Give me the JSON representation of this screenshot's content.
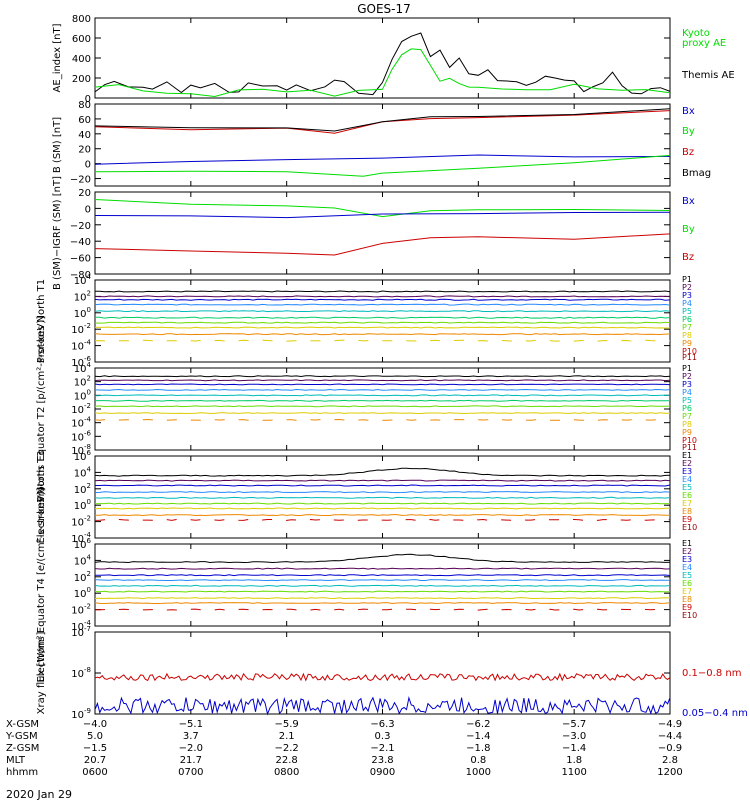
{
  "title": "GOES-17",
  "date": "2020 Jan 29",
  "colors": {
    "black": "#000000",
    "green": "#00dd00",
    "red": "#cc0000",
    "blue": "#0000cc",
    "darkred": "#990000",
    "yellow": "#ddcc00",
    "orange": "#ee8800",
    "cyan": "#00cccc",
    "lightblue": "#2288ff",
    "teal": "#00bbbb",
    "lime": "#66dd00",
    "purple": "#550055"
  },
  "chart_data": [
    {
      "type": "line",
      "ylabel": "AE_index [nT]",
      "ylim": [
        0,
        800
      ],
      "yticks": [
        "0",
        "200",
        "400",
        "600",
        "800"
      ],
      "legend": [
        {
          "text": "Kyoto",
          "color": "#00dd00"
        },
        {
          "text": "proxy AE",
          "color": "#00dd00"
        },
        {
          "text": "Themis AE",
          "color": "#000000"
        }
      ],
      "series": [
        {
          "name": "Themis AE",
          "color": "#000000",
          "x": [
            0,
            0.1,
            0.2,
            0.35,
            0.5,
            0.6,
            0.75,
            0.9,
            1.0,
            1.1,
            1.25,
            1.4,
            1.5,
            1.6,
            1.75,
            1.9,
            2.0,
            2.1,
            2.25,
            2.4,
            2.5,
            2.6,
            2.75,
            2.9,
            3.0,
            3.1,
            3.2,
            3.3,
            3.4,
            3.5,
            3.6,
            3.7,
            3.8,
            3.9,
            4.0,
            4.1,
            4.2,
            4.3,
            4.4,
            4.5,
            4.6,
            4.7,
            4.8,
            4.9,
            5.0,
            5.1,
            5.2,
            5.3,
            5.4,
            5.5,
            5.6,
            5.7,
            5.8,
            5.9,
            6.0
          ],
          "y": [
            60,
            140,
            120,
            80,
            100,
            90,
            110,
            100,
            140,
            90,
            120,
            90,
            80,
            100,
            120,
            90,
            100,
            90,
            80,
            110,
            140,
            110,
            100,
            90,
            110,
            380,
            620,
            580,
            640,
            420,
            500,
            280,
            360,
            300,
            220,
            250,
            180,
            150,
            120,
            160,
            140,
            200,
            150,
            230,
            140,
            110,
            110,
            120,
            270,
            110,
            80,
            60,
            50,
            70,
            60
          ]
        },
        {
          "name": "Kyoto proxy AE",
          "color": "#00dd00",
          "x": [
            0,
            0.25,
            0.5,
            0.75,
            1.0,
            1.25,
            1.5,
            1.75,
            2.0,
            2.25,
            2.5,
            2.75,
            3.0,
            3.1,
            3.2,
            3.3,
            3.4,
            3.5,
            3.6,
            3.7,
            3.8,
            3.9,
            4.0,
            4.25,
            4.5,
            4.75,
            5.0,
            5.25,
            5.5,
            5.75,
            6.0
          ],
          "y": [
            60,
            80,
            60,
            70,
            60,
            70,
            60,
            80,
            60,
            70,
            60,
            70,
            80,
            260,
            400,
            520,
            440,
            300,
            200,
            240,
            200,
            160,
            150,
            120,
            100,
            90,
            80,
            70,
            60,
            50,
            40
          ]
        }
      ]
    },
    {
      "type": "line",
      "ylabel": "B (SM) [nT]",
      "ylim": [
        -30,
        80
      ],
      "yticks": [
        "−20",
        "0",
        "20",
        "40",
        "60",
        "80"
      ],
      "ytick_values": [
        -20,
        0,
        20,
        40,
        60,
        80
      ],
      "legend": [
        {
          "text": "Bx",
          "color": "#0000cc"
        },
        {
          "text": "By",
          "color": "#00dd00"
        },
        {
          "text": "Bz",
          "color": "#cc0000"
        },
        {
          "text": "Bmag",
          "color": "#000000"
        }
      ],
      "series": [
        {
          "name": "Bz",
          "color": "#cc0000",
          "x": [
            0,
            1,
            2,
            2.5,
            3,
            3.5,
            4,
            5,
            6
          ],
          "y": [
            50,
            46,
            47,
            42,
            55,
            60,
            62,
            65,
            70
          ]
        },
        {
          "name": "Bmag",
          "color": "#000000",
          "x": [
            0,
            1,
            2,
            2.5,
            3,
            3.5,
            4,
            5,
            6
          ],
          "y": [
            52,
            48,
            49,
            44,
            56,
            62,
            64,
            67,
            73
          ]
        },
        {
          "name": "Bx",
          "color": "#0000cc",
          "x": [
            0,
            1,
            2,
            3,
            4,
            5,
            6
          ],
          "y": [
            -2,
            2,
            6,
            8,
            12,
            10,
            9
          ]
        },
        {
          "name": "By",
          "color": "#00dd00",
          "x": [
            0,
            1,
            2,
            2.8,
            3,
            4,
            5,
            6
          ],
          "y": [
            -10,
            -11,
            -12,
            -18,
            -14,
            -6,
            2,
            12
          ]
        }
      ]
    },
    {
      "type": "line",
      "ylabel": "B (SM)−IGRF (SM) [nT]",
      "ylim": [
        -80,
        20
      ],
      "yticks": [
        "−80",
        "−60",
        "−40",
        "−20",
        "0",
        "20"
      ],
      "ytick_values": [
        -80,
        -60,
        -40,
        -20,
        0,
        20
      ],
      "legend": [
        {
          "text": "Bx",
          "color": "#0000cc"
        },
        {
          "text": "By",
          "color": "#00dd00"
        },
        {
          "text": "Bz",
          "color": "#cc0000"
        }
      ],
      "series": [
        {
          "name": "By",
          "color": "#00dd00",
          "x": [
            0,
            1,
            2,
            2.5,
            3,
            3.5,
            4,
            5,
            6
          ],
          "y": [
            10,
            5,
            2,
            0,
            -10,
            -4,
            -2,
            -2,
            -3
          ]
        },
        {
          "name": "Bx",
          "color": "#0000cc",
          "x": [
            0,
            1,
            2,
            3,
            4,
            5,
            6
          ],
          "y": [
            -8,
            -10,
            -12,
            -8,
            -6,
            -6,
            -5
          ]
        },
        {
          "name": "Bz",
          "color": "#cc0000",
          "x": [
            0,
            1,
            2,
            2.5,
            3,
            3.5,
            4,
            5,
            6
          ],
          "y": [
            -50,
            -52,
            -55,
            -58,
            -42,
            -36,
            -34,
            -38,
            -30
          ]
        }
      ]
    },
    {
      "type": "line",
      "ylabel": "Protons North T1",
      "log": true,
      "ylim_exp": [
        -6,
        4
      ],
      "yticks_exp": [
        -6,
        -4,
        -2,
        0,
        2,
        4
      ],
      "legend": [
        {
          "text": "P1",
          "color": "#000000"
        },
        {
          "text": "P2",
          "color": "#550055"
        },
        {
          "text": "P3",
          "color": "#0000cc"
        },
        {
          "text": "P4",
          "color": "#2288ff"
        },
        {
          "text": "P5",
          "color": "#00bbbb"
        },
        {
          "text": "P6",
          "color": "#00cc66"
        },
        {
          "text": "P7",
          "color": "#66dd00"
        },
        {
          "text": "P8",
          "color": "#ddcc00"
        },
        {
          "text": "P9",
          "color": "#ee8800"
        },
        {
          "text": "P10",
          "color": "#cc0000"
        },
        {
          "text": "P11",
          "color": "#990000"
        }
      ],
      "levels_exp": [
        2.6,
        2.0,
        1.6,
        1.0,
        0.2,
        -0.6,
        -1.2,
        -1.8,
        -2.6,
        -3.4
      ],
      "level_colors": [
        "#000000",
        "#550055",
        "#0000cc",
        "#2288ff",
        "#00bbbb",
        "#00cc66",
        "#66dd00",
        "#ddcc00",
        "#ee8800",
        "#ddcc00"
      ]
    },
    {
      "type": "line",
      "ylabel": "Protons Equator T2 [p/(cm²-s-sr-keV)]",
      "log": true,
      "ylim_exp": [
        -8,
        4
      ],
      "yticks_exp": [
        -8,
        -6,
        -4,
        -2,
        0,
        2,
        4
      ],
      "legend": [
        {
          "text": "P1",
          "color": "#000000"
        },
        {
          "text": "P2",
          "color": "#550055"
        },
        {
          "text": "P3",
          "color": "#0000cc"
        },
        {
          "text": "P4",
          "color": "#2288ff"
        },
        {
          "text": "P5",
          "color": "#00bbbb"
        },
        {
          "text": "P6",
          "color": "#00cc66"
        },
        {
          "text": "P7",
          "color": "#66dd00"
        },
        {
          "text": "P8",
          "color": "#ddcc00"
        },
        {
          "text": "P9",
          "color": "#ee8800"
        },
        {
          "text": "P10",
          "color": "#cc0000"
        },
        {
          "text": "P11",
          "color": "#990000"
        }
      ],
      "levels_exp": [
        2.8,
        2.2,
        1.6,
        0.8,
        0.0,
        -0.8,
        -1.6,
        -2.6,
        -3.6
      ],
      "level_colors": [
        "#000000",
        "#550055",
        "#0000cc",
        "#2288ff",
        "#00bbbb",
        "#00cc66",
        "#66dd00",
        "#ddcc00",
        "#ee8800"
      ]
    },
    {
      "type": "line",
      "ylabel": "Electrons North T3",
      "log": true,
      "ylim_exp": [
        -4,
        6
      ],
      "yticks_exp": [
        -4,
        -2,
        0,
        2,
        4,
        6
      ],
      "legend": [
        {
          "text": "E1",
          "color": "#000000"
        },
        {
          "text": "E2",
          "color": "#550055"
        },
        {
          "text": "E3",
          "color": "#0000cc"
        },
        {
          "text": "E4",
          "color": "#2288ff"
        },
        {
          "text": "E5",
          "color": "#00bbbb"
        },
        {
          "text": "E6",
          "color": "#66dd00"
        },
        {
          "text": "E7",
          "color": "#ddcc00"
        },
        {
          "text": "E8",
          "color": "#ee8800"
        },
        {
          "text": "E9",
          "color": "#cc0000"
        },
        {
          "text": "E10",
          "color": "#990000"
        }
      ],
      "levels_exp": [
        3.6,
        3.0,
        2.4,
        1.6,
        0.9,
        0.2,
        -0.4,
        -1.2,
        -1.8
      ],
      "level_colors": [
        "#000000",
        "#550055",
        "#0000cc",
        "#2288ff",
        "#00bbbb",
        "#66dd00",
        "#ddcc00",
        "#ee8800",
        "#cc0000"
      ]
    },
    {
      "type": "line",
      "ylabel": "Electrons Equator T4 [e/(cm²-s-sr-keV)]",
      "log": true,
      "ylim_exp": [
        -4,
        6
      ],
      "yticks_exp": [
        -4,
        -2,
        0,
        2,
        4,
        6
      ],
      "legend": [
        {
          "text": "E1",
          "color": "#000000"
        },
        {
          "text": "E2",
          "color": "#550055"
        },
        {
          "text": "E3",
          "color": "#0000cc"
        },
        {
          "text": "E4",
          "color": "#2288ff"
        },
        {
          "text": "E5",
          "color": "#00bbbb"
        },
        {
          "text": "E6",
          "color": "#66dd00"
        },
        {
          "text": "E7",
          "color": "#ddcc00"
        },
        {
          "text": "E8",
          "color": "#ee8800"
        },
        {
          "text": "E9",
          "color": "#cc0000"
        },
        {
          "text": "E10",
          "color": "#990000"
        }
      ],
      "levels_exp": [
        3.8,
        3.0,
        2.2,
        1.6,
        0.9,
        0.2,
        -0.6,
        -1.2,
        -2.0
      ],
      "level_colors": [
        "#000000",
        "#550055",
        "#0000cc",
        "#2288ff",
        "#00bbbb",
        "#66dd00",
        "#ddcc00",
        "#ee8800",
        "#cc0000"
      ]
    },
    {
      "type": "line",
      "ylabel": "Xray flux [W/m²]",
      "log": true,
      "ylim_exp": [
        -9,
        -7
      ],
      "yticks_exp": [
        -9,
        -8,
        -7
      ],
      "legend": [
        {
          "text": "0.1−0.8 nm",
          "color": "#cc0000"
        },
        {
          "text": "0.05−0.4 nm",
          "color": "#0000cc"
        }
      ],
      "series_exp": [
        {
          "name": "0.1−0.8 nm",
          "color": "#cc0000",
          "level": -8.1,
          "noise": 0.08
        },
        {
          "name": "0.05−0.4 nm",
          "color": "#0000cc",
          "level": -8.8,
          "noise": 0.2
        }
      ]
    }
  ],
  "x_axis": {
    "ticks": [
      "0600",
      "0700",
      "0800",
      "0900",
      "1000",
      "1100",
      "1200"
    ],
    "rows": [
      {
        "label": "X-GSM",
        "values": [
          "−4.0",
          "−5.1",
          "−5.9",
          "−6.3",
          "−6.2",
          "−5.7",
          "−4.9"
        ]
      },
      {
        "label": "Y-GSM",
        "values": [
          "5.0",
          "3.7",
          "2.1",
          "0.3",
          "−1.4",
          "−3.0",
          "−4.4"
        ]
      },
      {
        "label": "Z-GSM",
        "values": [
          "−1.5",
          "−2.0",
          "−2.2",
          "−2.1",
          "−1.8",
          "−1.4",
          "−0.9"
        ]
      },
      {
        "label": "MLT",
        "values": [
          "20.7",
          "21.7",
          "22.8",
          "23.8",
          "0.8",
          "1.8",
          "2.8"
        ]
      },
      {
        "label": "hhmm",
        "values": [
          "0600",
          "0700",
          "0800",
          "0900",
          "1000",
          "1100",
          "1200"
        ]
      }
    ]
  }
}
